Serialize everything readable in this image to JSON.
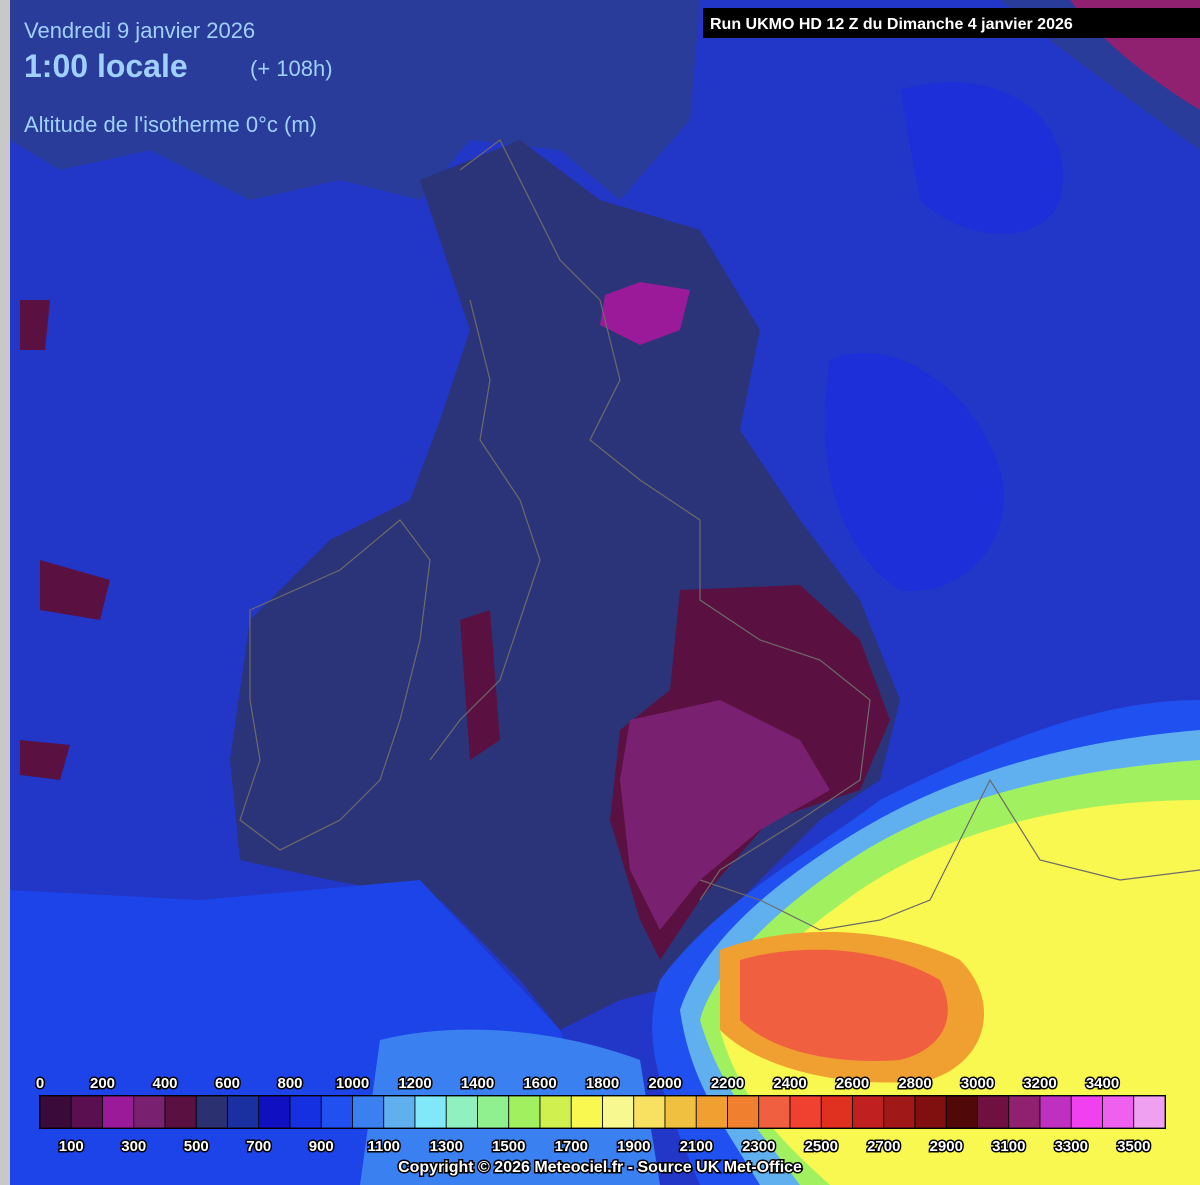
{
  "header": {
    "date": "Vendredi 9 janvier 2026",
    "time": "1:00 locale",
    "lead": "(+ 108h)",
    "parameter": "Altitude de l'isotherme 0°c (m)",
    "run": "Run UKMO HD 12 Z du Dimanche 4 janvier 2026"
  },
  "legend": {
    "levels": [
      0,
      100,
      200,
      300,
      400,
      500,
      600,
      700,
      800,
      900,
      1000,
      1100,
      1200,
      1300,
      1400,
      1500,
      1600,
      1700,
      1800,
      1900,
      2000,
      2100,
      2200,
      2300,
      2400,
      2500,
      2600,
      2700,
      2800,
      2900,
      3000,
      3100,
      3200,
      3300,
      3400,
      3500
    ],
    "colors": [
      "#3a0a3a",
      "#5a1050",
      "#9a1a9a",
      "#7a2070",
      "#5a1040",
      "#2a3070",
      "#1a30a0",
      "#1010c0",
      "#1530e0",
      "#2050f0",
      "#3a80f0",
      "#60b0f0",
      "#80e8f8",
      "#90f0c0",
      "#90f090",
      "#a0f060",
      "#d0f050",
      "#f8f850",
      "#f8f890",
      "#f8e060",
      "#f0c040",
      "#f0a030",
      "#f08030",
      "#f06040",
      "#f04030",
      "#e03020",
      "#c02020",
      "#a01818",
      "#801010",
      "#500808",
      "#701040",
      "#902070",
      "#c030c0",
      "#f040f0",
      "#f060f0",
      "#f0a0f0"
    ]
  },
  "footer": {
    "copyright": "Copyright © 2026 Meteociel.fr - Source UK Met-Office"
  }
}
